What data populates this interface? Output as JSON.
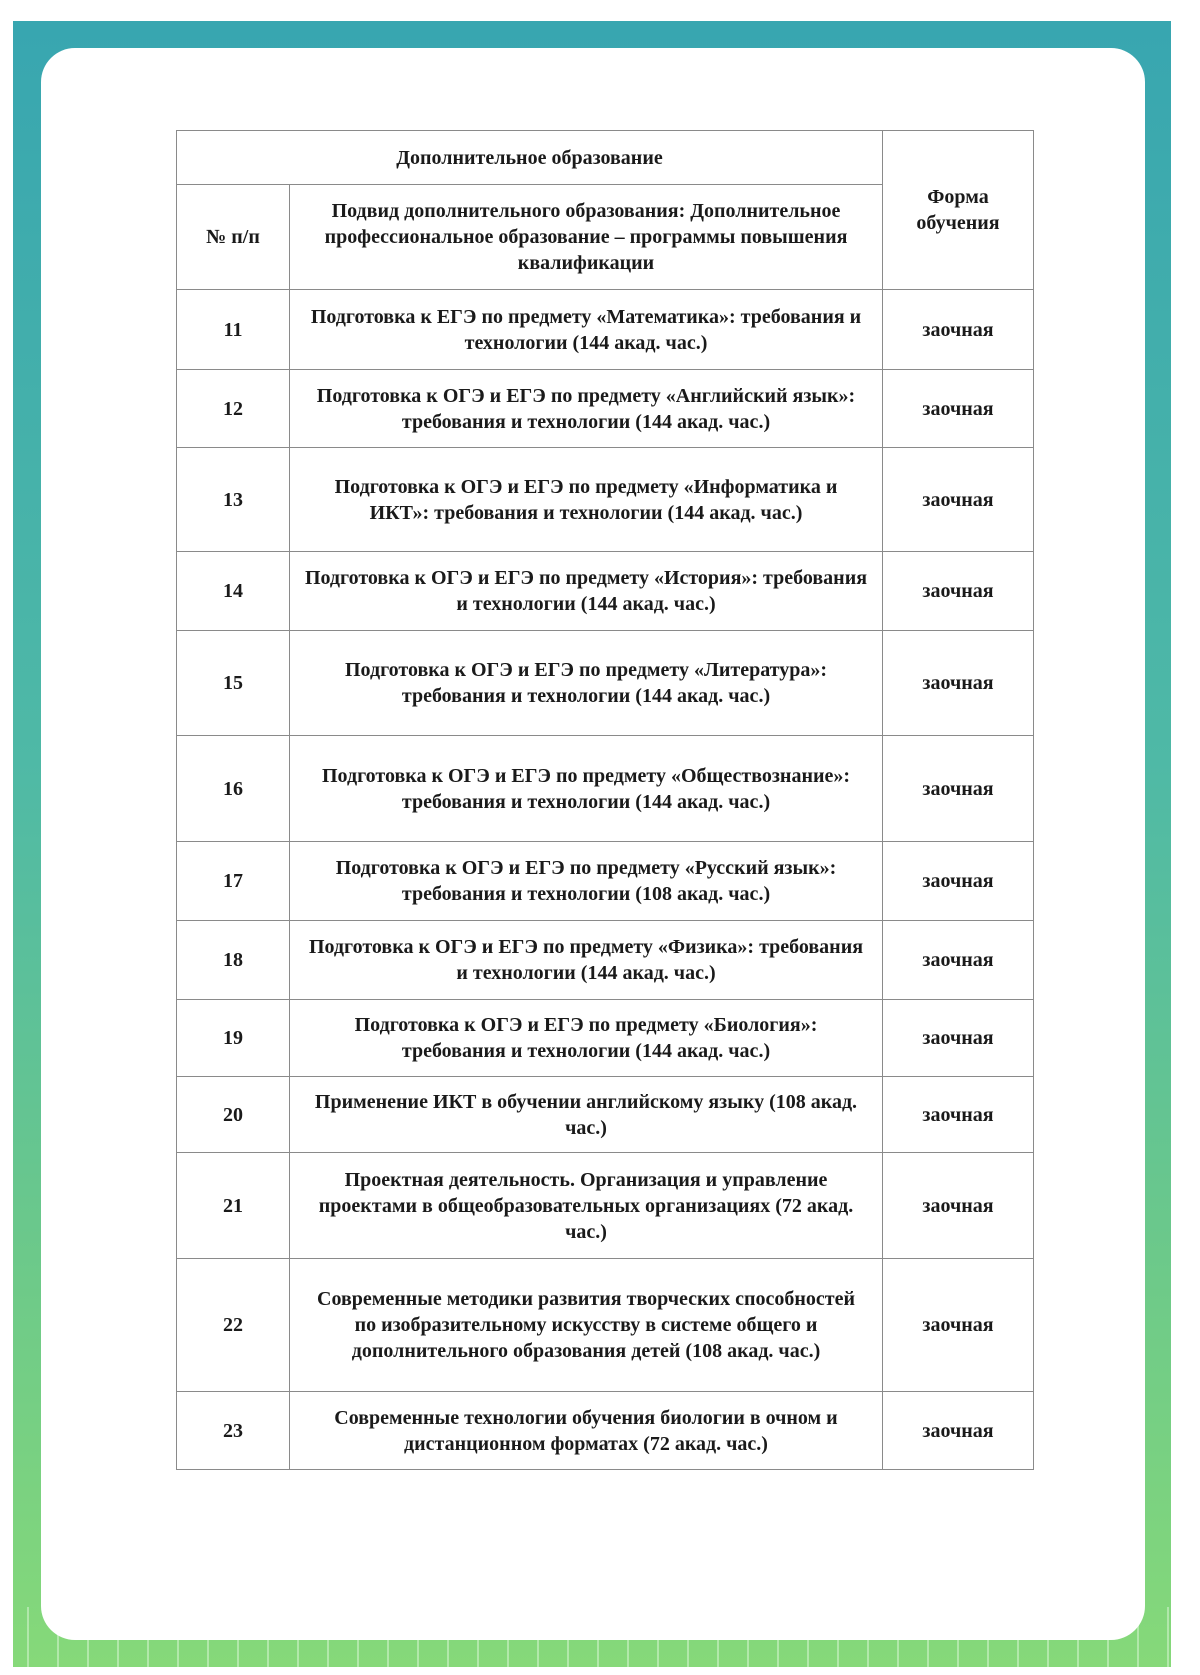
{
  "colors": {
    "frame_top": "#38a6b0",
    "frame_bottom": "#86d979"
  },
  "table": {
    "group_header": "Дополнительное образование",
    "col_num": "№ п/п",
    "col_subtype": "Подвид дополнительного образования: Дополнительное профессиональное образование – программы повышения квалификации",
    "col_form": "Форма обучения",
    "rows": [
      {
        "num": "11",
        "title": "Подготовка к ЕГЭ по предмету «Математика»: требования и технологии (144 акад. час.)",
        "form": "заочная"
      },
      {
        "num": "12",
        "title": "Подготовка к ОГЭ и ЕГЭ по предмету «Английский язык»: требования и технологии (144 акад. час.)",
        "form": "заочная"
      },
      {
        "num": "13",
        "title": "Подготовка к ОГЭ и ЕГЭ по предмету «Информатика и ИКТ»: требования и технологии (144 акад. час.)",
        "form": "заочная"
      },
      {
        "num": "14",
        "title": "Подготовка к ОГЭ и ЕГЭ по предмету «История»: требования и технологии (144 акад. час.)",
        "form": "заочная"
      },
      {
        "num": "15",
        "title": "Подготовка к ОГЭ и ЕГЭ по предмету «Литература»: требования и технологии (144 акад. час.)",
        "form": "заочная"
      },
      {
        "num": "16",
        "title": "Подготовка к ОГЭ и ЕГЭ по предмету «Обществознание»: требования и технологии (144 акад. час.)",
        "form": "заочная"
      },
      {
        "num": "17",
        "title": "Подготовка к ОГЭ и ЕГЭ по предмету «Русский язык»: требования и технологии (108 акад. час.)",
        "form": "заочная"
      },
      {
        "num": "18",
        "title": "Подготовка к ОГЭ и ЕГЭ по предмету «Физика»: требования и технологии (144 акад. час.)",
        "form": "заочная"
      },
      {
        "num": "19",
        "title": "Подготовка к ОГЭ и ЕГЭ по предмету «Биология»: требования и технологии (144 акад. час.)",
        "form": "заочная"
      },
      {
        "num": "20",
        "title": "Применение ИКТ в обучении английскому языку (108 акад. час.)",
        "form": "заочная"
      },
      {
        "num": "21",
        "title": "Проектная деятельность. Организация и управление проектами в общеобразовательных организациях (72 акад. час.)",
        "form": "заочная"
      },
      {
        "num": "22",
        "title": "Современные методики развития творческих способностей по изобразительному искусству в системе общего и дополнительного образования детей (108 акад. час.)",
        "form": "заочная"
      },
      {
        "num": "23",
        "title": "Современные технологии обучения биологии в очном и дистанционном форматах (72 акад. час.)",
        "form": "заочная"
      }
    ]
  }
}
